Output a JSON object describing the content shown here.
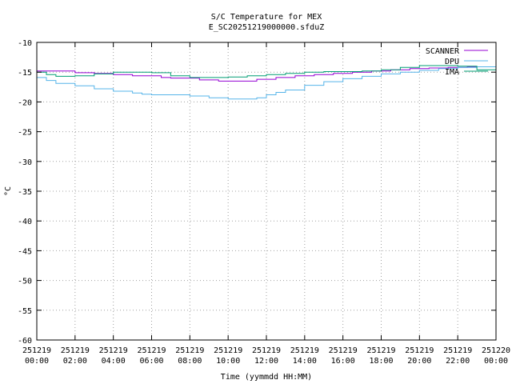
{
  "chart_data": {
    "type": "line",
    "title": "S/C Temperature for MEX",
    "subtitle": "E_SC20251219000000.sfduZ",
    "xlabel": "Time (yymmdd HH:MM)",
    "ylabel": "°C",
    "xlim": [
      0,
      24
    ],
    "ylim": [
      -60,
      -10
    ],
    "y_ticks": [
      -10,
      -15,
      -20,
      -25,
      -30,
      -35,
      -40,
      -45,
      -50,
      -55,
      -60
    ],
    "x_ticks": [
      {
        "value": 0,
        "date": "251219",
        "time": "00:00"
      },
      {
        "value": 2,
        "date": "251219",
        "time": "02:00"
      },
      {
        "value": 4,
        "date": "251219",
        "time": "04:00"
      },
      {
        "value": 6,
        "date": "251219",
        "time": "06:00"
      },
      {
        "value": 8,
        "date": "251219",
        "time": "08:00"
      },
      {
        "value": 10,
        "date": "251219",
        "time": "10:00"
      },
      {
        "value": 12,
        "date": "251219",
        "time": "12:00"
      },
      {
        "value": 14,
        "date": "251219",
        "time": "14:00"
      },
      {
        "value": 16,
        "date": "251219",
        "time": "16:00"
      },
      {
        "value": 18,
        "date": "251219",
        "time": "18:00"
      },
      {
        "value": 20,
        "date": "251219",
        "time": "20:00"
      },
      {
        "value": 22,
        "date": "251219",
        "time": "22:00"
      },
      {
        "value": 24,
        "date": "251220",
        "time": "00:00"
      }
    ],
    "grid": true,
    "legend_position": "top-right",
    "series": [
      {
        "name": "SCANNER",
        "color": "#9400d3",
        "points": [
          [
            0,
            -14.8
          ],
          [
            1,
            -14.8
          ],
          [
            2,
            -15.1
          ],
          [
            3,
            -15.2
          ],
          [
            4,
            -15.4
          ],
          [
            5,
            -15.6
          ],
          [
            6,
            -15.6
          ],
          [
            6.5,
            -15.9
          ],
          [
            7,
            -16.0
          ],
          [
            8,
            -16.0
          ],
          [
            8.5,
            -16.3
          ],
          [
            9.5,
            -16.5
          ],
          [
            10.5,
            -16.5
          ],
          [
            11.5,
            -16.2
          ],
          [
            12.5,
            -15.9
          ],
          [
            13.5,
            -15.6
          ],
          [
            14.5,
            -15.4
          ],
          [
            15.5,
            -15.2
          ],
          [
            16.5,
            -15.0
          ],
          [
            17.5,
            -14.8
          ],
          [
            18.5,
            -14.6
          ],
          [
            19.5,
            -14.4
          ],
          [
            20.5,
            -14.3
          ],
          [
            21.5,
            -14.2
          ],
          [
            22.5,
            -14.1
          ],
          [
            23.5,
            -14.1
          ],
          [
            24,
            -14.1
          ]
        ]
      },
      {
        "name": "DPU",
        "color": "#56b4e9",
        "points": [
          [
            0,
            -15.9
          ],
          [
            0.5,
            -16.4
          ],
          [
            1,
            -16.9
          ],
          [
            2,
            -17.3
          ],
          [
            3,
            -17.8
          ],
          [
            4,
            -18.2
          ],
          [
            5,
            -18.5
          ],
          [
            5.5,
            -18.7
          ],
          [
            6,
            -18.8
          ],
          [
            7,
            -18.8
          ],
          [
            8,
            -19.0
          ],
          [
            9,
            -19.3
          ],
          [
            10,
            -19.5
          ],
          [
            11,
            -19.5
          ],
          [
            11.5,
            -19.3
          ],
          [
            12,
            -18.8
          ],
          [
            12.5,
            -18.4
          ],
          [
            13,
            -18.0
          ],
          [
            14,
            -17.2
          ],
          [
            15,
            -16.6
          ],
          [
            16,
            -16.1
          ],
          [
            17,
            -15.7
          ],
          [
            18,
            -15.3
          ],
          [
            19,
            -15.0
          ],
          [
            20,
            -14.7
          ],
          [
            21,
            -14.4
          ],
          [
            22,
            -14.2
          ],
          [
            23,
            -14.1
          ],
          [
            24,
            -14.0
          ]
        ]
      },
      {
        "name": "IMA",
        "color": "#009e73",
        "points": [
          [
            0,
            -15.0
          ],
          [
            0.5,
            -15.4
          ],
          [
            1,
            -15.7
          ],
          [
            2,
            -15.6
          ],
          [
            3,
            -15.3
          ],
          [
            4,
            -15.0
          ],
          [
            5,
            -15.0
          ],
          [
            6,
            -15.1
          ],
          [
            7,
            -15.6
          ],
          [
            8,
            -15.9
          ],
          [
            9,
            -15.9
          ],
          [
            10,
            -15.8
          ],
          [
            11,
            -15.6
          ],
          [
            12,
            -15.4
          ],
          [
            13,
            -15.2
          ],
          [
            14,
            -15.0
          ],
          [
            15,
            -14.9
          ],
          [
            16,
            -14.9
          ],
          [
            17,
            -14.8
          ],
          [
            18,
            -14.6
          ],
          [
            19,
            -14.2
          ],
          [
            20,
            -13.9
          ],
          [
            21,
            -13.9
          ],
          [
            22,
            -14.0
          ],
          [
            23,
            -14.6
          ],
          [
            24,
            -14.6
          ]
        ]
      }
    ]
  }
}
